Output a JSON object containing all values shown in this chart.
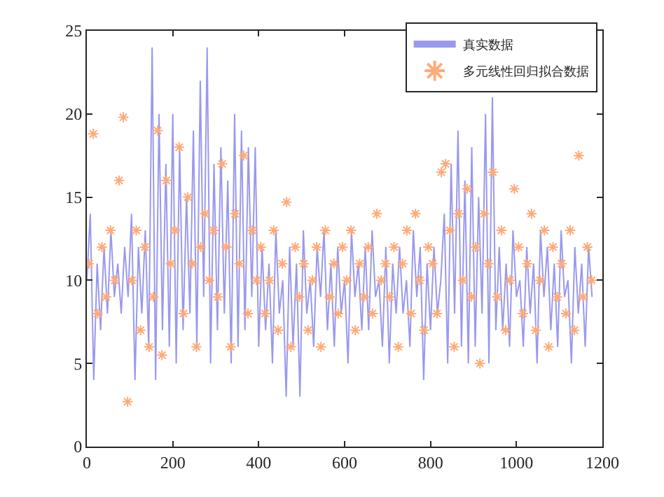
{
  "chart_data": {
    "type": "line",
    "xlim": [
      0,
      1200
    ],
    "ylim": [
      0,
      25
    ],
    "xticks": [
      0,
      200,
      400,
      600,
      800,
      1000,
      1200
    ],
    "yticks": [
      0,
      5,
      10,
      15,
      20,
      25
    ],
    "legend": "top right",
    "series": [
      {
        "name": "真实数据",
        "color": "#9999ee",
        "line_style": "solid",
        "marker": "none",
        "x": [
          0,
          8,
          16,
          24,
          32,
          40,
          48,
          56,
          64,
          72,
          80,
          88,
          96,
          104,
          112,
          120,
          128,
          136,
          144,
          152,
          160,
          168,
          176,
          184,
          192,
          200,
          208,
          216,
          224,
          232,
          240,
          248,
          256,
          264,
          272,
          280,
          288,
          296,
          304,
          312,
          320,
          328,
          336,
          344,
          352,
          360,
          368,
          376,
          384,
          392,
          400,
          408,
          416,
          424,
          432,
          440,
          448,
          456,
          464,
          472,
          480,
          488,
          496,
          504,
          512,
          520,
          528,
          536,
          544,
          552,
          560,
          568,
          576,
          584,
          592,
          600,
          608,
          616,
          624,
          632,
          640,
          648,
          656,
          664,
          672,
          680,
          688,
          696,
          704,
          712,
          720,
          728,
          736,
          744,
          752,
          760,
          768,
          776,
          784,
          792,
          800,
          808,
          816,
          824,
          832,
          840,
          848,
          856,
          864,
          872,
          880,
          888,
          896,
          904,
          912,
          920,
          928,
          936,
          944,
          952,
          960,
          968,
          976,
          984,
          992,
          1000,
          1008,
          1016,
          1024,
          1032,
          1040,
          1048,
          1056,
          1064,
          1072,
          1080,
          1088,
          1096,
          1104,
          1112,
          1120,
          1128,
          1136,
          1144,
          1152,
          1160,
          1168,
          1176
        ],
        "values": [
          10,
          14,
          4,
          11,
          7,
          12,
          8,
          13,
          9,
          11,
          8,
          12,
          9,
          14,
          4,
          12,
          8,
          13,
          6,
          24,
          4,
          20,
          7,
          17,
          6,
          20,
          5,
          18,
          7,
          15,
          8,
          19,
          6,
          22,
          9,
          24,
          5,
          17,
          7,
          18,
          8,
          16,
          5,
          20,
          6,
          19,
          7,
          18,
          9,
          18,
          6,
          12,
          7,
          11,
          5,
          13,
          8,
          10,
          3,
          12,
          6,
          11,
          3,
          13,
          8,
          10,
          6,
          12,
          9,
          13,
          7,
          11,
          6,
          12,
          8,
          10,
          5,
          13,
          9,
          11,
          7,
          12,
          7,
          13,
          9,
          10,
          6,
          12,
          5,
          11,
          8,
          12,
          8,
          10,
          6,
          13,
          9,
          12,
          4,
          11,
          7,
          12,
          8,
          10,
          14,
          5,
          17,
          8,
          19,
          6,
          16,
          5,
          18,
          6,
          15,
          8,
          20,
          5,
          21,
          7,
          12,
          7,
          11,
          6,
          13,
          9,
          10,
          6,
          12,
          8,
          11,
          5,
          13,
          9,
          12,
          7,
          11,
          6,
          13,
          9,
          10,
          5,
          12,
          8,
          11,
          6,
          12,
          9
        ]
      },
      {
        "name": "多元线性回归拟合数据",
        "type": "scatter",
        "color": "#ffaa77",
        "marker": "cross",
        "x": [
          5,
          15,
          25,
          35,
          45,
          55,
          65,
          75,
          85,
          95,
          105,
          115,
          125,
          135,
          145,
          155,
          165,
          175,
          185,
          195,
          205,
          215,
          225,
          235,
          245,
          255,
          265,
          275,
          285,
          295,
          305,
          315,
          325,
          335,
          345,
          355,
          365,
          375,
          385,
          395,
          405,
          415,
          425,
          435,
          445,
          455,
          465,
          475,
          485,
          495,
          505,
          515,
          525,
          535,
          545,
          555,
          565,
          575,
          585,
          595,
          605,
          615,
          625,
          635,
          645,
          655,
          665,
          675,
          685,
          695,
          705,
          715,
          725,
          735,
          745,
          755,
          765,
          775,
          785,
          795,
          805,
          815,
          825,
          835,
          845,
          855,
          865,
          875,
          885,
          895,
          905,
          915,
          925,
          935,
          945,
          955,
          965,
          975,
          985,
          995,
          1005,
          1015,
          1025,
          1035,
          1045,
          1055,
          1065,
          1075,
          1085,
          1095,
          1105,
          1115,
          1125,
          1135,
          1145,
          1155,
          1165,
          1175
        ],
        "values": [
          11,
          18.8,
          8,
          12,
          9,
          13,
          10,
          16,
          19.8,
          2.7,
          10,
          13,
          7,
          12,
          6,
          9,
          19,
          5.5,
          16,
          11,
          13,
          18,
          8,
          15,
          11,
          6,
          12,
          14,
          10,
          13,
          9,
          17,
          12,
          6,
          14,
          11,
          17.5,
          8,
          13,
          10,
          12,
          8,
          10,
          13,
          7,
          11,
          14.7,
          6,
          12,
          9,
          11,
          7,
          10,
          12,
          6,
          13,
          9,
          11,
          8,
          12,
          10,
          13,
          7,
          11,
          9,
          12,
          8,
          14,
          10,
          11,
          9,
          12,
          6,
          11,
          13,
          8,
          14,
          10,
          7,
          12,
          11,
          8,
          16.5,
          17,
          13,
          6,
          14,
          10,
          15.5,
          9,
          12,
          5,
          14,
          11,
          16.5,
          9,
          13,
          7,
          10,
          15.5,
          12,
          8,
          11,
          14,
          7,
          10,
          13,
          6,
          12,
          9,
          11,
          8,
          13,
          7,
          17.5,
          9,
          12,
          10
        ]
      }
    ]
  }
}
